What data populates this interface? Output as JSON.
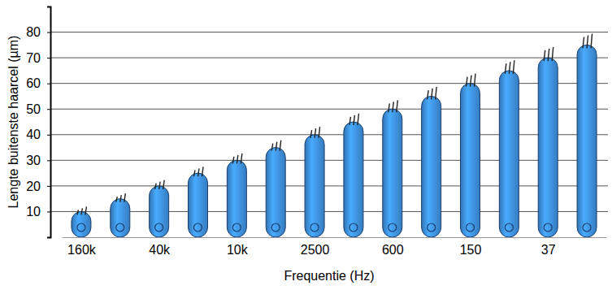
{
  "chart_data": {
    "type": "bar",
    "x_label": "Frequentie (Hz)",
    "y_label": "Lengte buitenste haarcel (µm)",
    "categories": [
      "160k",
      null,
      "40k",
      null,
      "10k",
      null,
      "2500",
      null,
      "600",
      null,
      "150",
      null,
      "37",
      null
    ],
    "values": [
      10,
      15,
      20,
      25,
      30,
      35,
      40,
      45,
      50,
      55,
      60,
      65,
      70,
      75
    ],
    "color": "#3d8fdc",
    "ylim": [
      0,
      90
    ],
    "yticks": [
      10,
      20,
      30,
      40,
      50,
      60,
      70,
      80
    ],
    "grid": true
  }
}
